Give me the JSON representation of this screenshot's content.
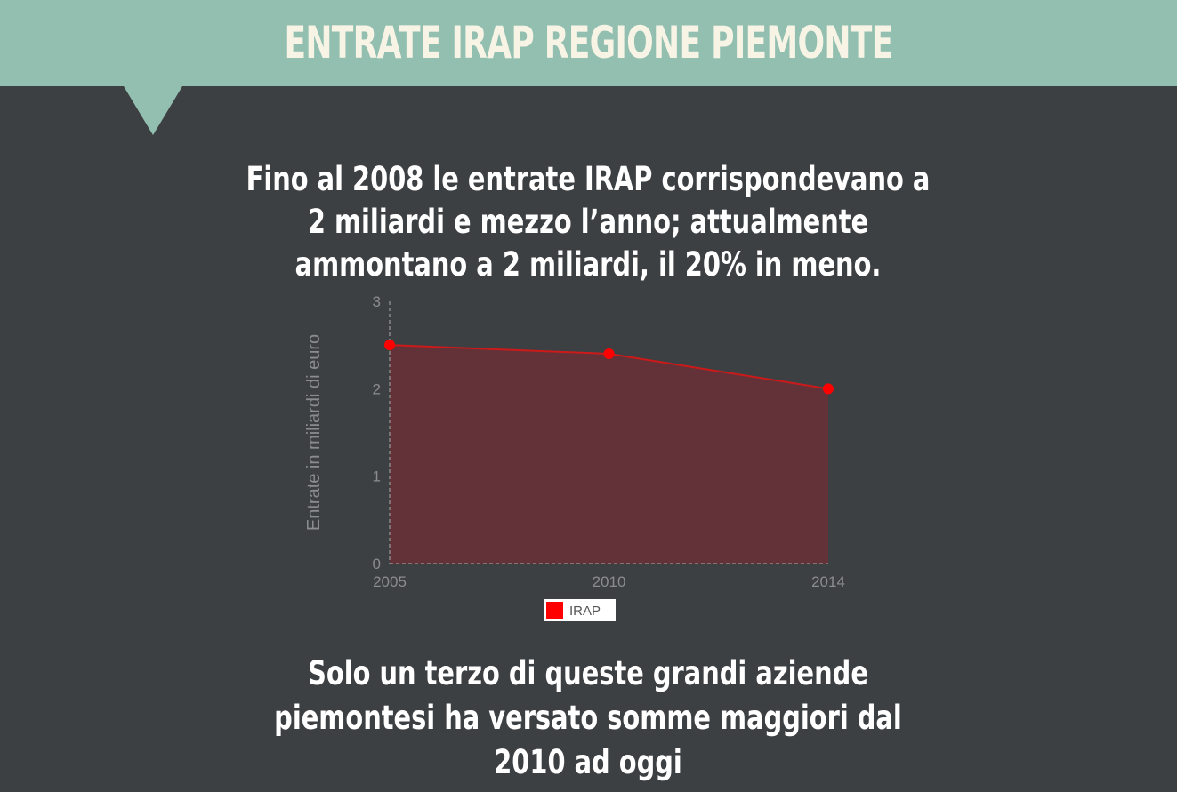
{
  "header": {
    "title": "ENTRATE IRAP REGIONE PIEMONTE"
  },
  "intro": {
    "text": "Fino al 2008 le entrate IRAP corrispondevano a 2 miliardi e mezzo l’anno; attualmente ammontano a 2 miliardi, il 20% in meno."
  },
  "footer": {
    "text": "Solo un terzo di queste grandi aziende piemontesi ha versato somme maggiori dal 2010 ad oggi"
  },
  "chart_data": {
    "type": "area",
    "x": [
      "2005",
      "2010",
      "2014"
    ],
    "series": [
      {
        "name": "IRAP",
        "values": [
          2.5,
          2.4,
          2.0
        ]
      }
    ],
    "ylabel": "Entrate in miliardi di euro",
    "xlabel": "",
    "ylim": [
      0,
      3
    ],
    "yticks": [
      "0",
      "1",
      "2",
      "3"
    ],
    "grid": false,
    "legend_position": "bottom",
    "colors": {
      "line": "#cc1a1a",
      "point": "#ff0000",
      "fill": "#633238",
      "axis": "#9a9a9a",
      "legend_swatch": "#ff0000",
      "legend_bg": "#ffffff"
    }
  },
  "theme": {
    "background": "#3d4043",
    "banner": "#93bfb0",
    "title_color": "#f7f4e6",
    "text_color": "#ffffff"
  }
}
